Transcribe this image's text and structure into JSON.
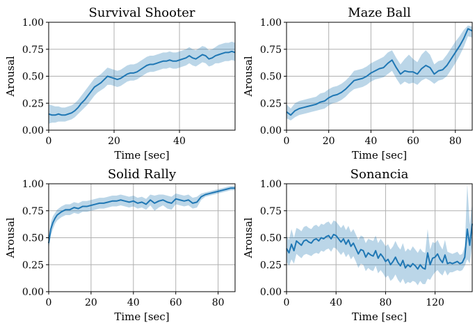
{
  "style": {
    "line_color": "#1f77b4",
    "band_color": "#1f77b4",
    "band_opacity": 0.3,
    "grid_color": "#b0b0b0"
  },
  "chart_data": [
    {
      "type": "line",
      "title": "Survival Shooter",
      "xlabel": "Time [sec]",
      "ylabel": "Arousal",
      "xlim": [
        0,
        57
      ],
      "ylim": [
        0,
        1
      ],
      "xticks": [
        0,
        20,
        40
      ],
      "yticks": [
        0,
        0.25,
        0.5,
        0.75,
        1.0
      ],
      "ytick_labels": [
        "0.00",
        "0.25",
        "0.50",
        "0.75",
        "1.00"
      ],
      "grid": true,
      "x": [
        0,
        1,
        2,
        3,
        4,
        5,
        6,
        7,
        8,
        9,
        10,
        11,
        12,
        13,
        14,
        15,
        16,
        17,
        18,
        19,
        20,
        21,
        22,
        23,
        24,
        25,
        26,
        27,
        28,
        29,
        30,
        31,
        32,
        33,
        34,
        35,
        36,
        37,
        38,
        39,
        40,
        41,
        42,
        43,
        44,
        45,
        46,
        47,
        48,
        49,
        50,
        51,
        52,
        53,
        54,
        55,
        56,
        57
      ],
      "mean": [
        0.15,
        0.14,
        0.14,
        0.15,
        0.14,
        0.14,
        0.15,
        0.16,
        0.18,
        0.21,
        0.25,
        0.28,
        0.32,
        0.36,
        0.4,
        0.42,
        0.44,
        0.47,
        0.5,
        0.49,
        0.48,
        0.47,
        0.48,
        0.5,
        0.52,
        0.53,
        0.53,
        0.54,
        0.56,
        0.58,
        0.6,
        0.61,
        0.61,
        0.62,
        0.63,
        0.64,
        0.64,
        0.65,
        0.64,
        0.64,
        0.65,
        0.66,
        0.67,
        0.69,
        0.67,
        0.66,
        0.68,
        0.7,
        0.69,
        0.66,
        0.67,
        0.69,
        0.7,
        0.71,
        0.72,
        0.72,
        0.73,
        0.72
      ],
      "lower": [
        0.06,
        0.07,
        0.07,
        0.08,
        0.08,
        0.08,
        0.09,
        0.1,
        0.12,
        0.15,
        0.18,
        0.21,
        0.24,
        0.28,
        0.32,
        0.35,
        0.37,
        0.39,
        0.42,
        0.42,
        0.41,
        0.4,
        0.41,
        0.43,
        0.45,
        0.46,
        0.46,
        0.47,
        0.49,
        0.51,
        0.53,
        0.54,
        0.54,
        0.55,
        0.56,
        0.57,
        0.57,
        0.58,
        0.57,
        0.57,
        0.58,
        0.59,
        0.6,
        0.62,
        0.6,
        0.59,
        0.61,
        0.63,
        0.62,
        0.59,
        0.6,
        0.62,
        0.62,
        0.63,
        0.64,
        0.64,
        0.65,
        0.64
      ],
      "upper": [
        0.24,
        0.23,
        0.22,
        0.22,
        0.21,
        0.21,
        0.22,
        0.23,
        0.25,
        0.28,
        0.32,
        0.36,
        0.4,
        0.44,
        0.48,
        0.5,
        0.52,
        0.55,
        0.58,
        0.57,
        0.56,
        0.55,
        0.56,
        0.58,
        0.6,
        0.61,
        0.61,
        0.62,
        0.64,
        0.66,
        0.68,
        0.69,
        0.69,
        0.7,
        0.71,
        0.72,
        0.72,
        0.73,
        0.72,
        0.72,
        0.73,
        0.74,
        0.75,
        0.77,
        0.75,
        0.74,
        0.76,
        0.78,
        0.77,
        0.74,
        0.75,
        0.77,
        0.79,
        0.8,
        0.81,
        0.81,
        0.82,
        0.81
      ]
    },
    {
      "type": "line",
      "title": "Maze Ball",
      "xlabel": "Time [sec]",
      "ylabel": "Arousal",
      "xlim": [
        0,
        88
      ],
      "ylim": [
        0,
        1
      ],
      "xticks": [
        0,
        20,
        40,
        60,
        80
      ],
      "yticks": [
        0,
        0.25,
        0.5,
        0.75,
        1.0
      ],
      "ytick_labels": [
        "0.00",
        "0.25",
        "0.50",
        "0.75",
        "1.00"
      ],
      "grid": true,
      "x": [
        0,
        2,
        4,
        6,
        8,
        10,
        12,
        14,
        16,
        18,
        20,
        22,
        24,
        26,
        28,
        30,
        32,
        34,
        36,
        38,
        40,
        42,
        44,
        46,
        48,
        50,
        52,
        54,
        56,
        58,
        60,
        62,
        64,
        66,
        68,
        70,
        72,
        74,
        76,
        78,
        80,
        82,
        84,
        86,
        88
      ],
      "mean": [
        0.17,
        0.14,
        0.18,
        0.2,
        0.21,
        0.22,
        0.23,
        0.24,
        0.26,
        0.27,
        0.3,
        0.32,
        0.33,
        0.35,
        0.38,
        0.42,
        0.46,
        0.47,
        0.48,
        0.5,
        0.53,
        0.55,
        0.57,
        0.58,
        0.62,
        0.65,
        0.58,
        0.52,
        0.55,
        0.54,
        0.54,
        0.52,
        0.57,
        0.6,
        0.58,
        0.52,
        0.55,
        0.56,
        0.6,
        0.66,
        0.72,
        0.78,
        0.85,
        0.94,
        0.92
      ],
      "lower": [
        0.11,
        0.09,
        0.12,
        0.14,
        0.15,
        0.16,
        0.17,
        0.18,
        0.19,
        0.2,
        0.23,
        0.25,
        0.26,
        0.28,
        0.31,
        0.35,
        0.38,
        0.39,
        0.4,
        0.42,
        0.45,
        0.47,
        0.48,
        0.49,
        0.52,
        0.55,
        0.48,
        0.42,
        0.45,
        0.43,
        0.44,
        0.42,
        0.46,
        0.48,
        0.46,
        0.43,
        0.46,
        0.47,
        0.5,
        0.56,
        0.62,
        0.69,
        0.77,
        0.87,
        0.86
      ],
      "upper": [
        0.24,
        0.2,
        0.25,
        0.27,
        0.28,
        0.29,
        0.3,
        0.31,
        0.34,
        0.35,
        0.38,
        0.4,
        0.41,
        0.43,
        0.46,
        0.5,
        0.55,
        0.56,
        0.57,
        0.59,
        0.62,
        0.64,
        0.66,
        0.68,
        0.72,
        0.74,
        0.67,
        0.61,
        0.66,
        0.7,
        0.66,
        0.63,
        0.7,
        0.74,
        0.7,
        0.61,
        0.64,
        0.65,
        0.7,
        0.76,
        0.82,
        0.87,
        0.93,
        0.97,
        0.96
      ]
    },
    {
      "type": "line",
      "title": "Solid Rally",
      "xlabel": "Time [sec]",
      "ylabel": "Arousal",
      "xlim": [
        0,
        88
      ],
      "ylim": [
        0,
        1
      ],
      "xticks": [
        0,
        20,
        40,
        60,
        80
      ],
      "yticks": [
        0,
        0.25,
        0.5,
        0.75,
        1.0
      ],
      "ytick_labels": [
        "0.00",
        "0.25",
        "0.50",
        "0.75",
        "1.00"
      ],
      "grid": true,
      "x": [
        0,
        1,
        2,
        3,
        4,
        6,
        8,
        10,
        12,
        14,
        16,
        18,
        20,
        22,
        24,
        26,
        28,
        30,
        32,
        34,
        36,
        38,
        40,
        42,
        44,
        46,
        48,
        50,
        52,
        54,
        56,
        58,
        60,
        62,
        64,
        66,
        68,
        70,
        72,
        74,
        76,
        78,
        80,
        82,
        84,
        86,
        88
      ],
      "mean": [
        0.45,
        0.58,
        0.64,
        0.68,
        0.71,
        0.74,
        0.76,
        0.76,
        0.78,
        0.77,
        0.79,
        0.79,
        0.8,
        0.81,
        0.82,
        0.82,
        0.83,
        0.84,
        0.84,
        0.85,
        0.84,
        0.83,
        0.84,
        0.82,
        0.83,
        0.81,
        0.85,
        0.82,
        0.84,
        0.85,
        0.83,
        0.82,
        0.86,
        0.85,
        0.84,
        0.85,
        0.82,
        0.83,
        0.88,
        0.9,
        0.91,
        0.92,
        0.93,
        0.94,
        0.95,
        0.96,
        0.96
      ],
      "lower": [
        0.4,
        0.52,
        0.58,
        0.63,
        0.66,
        0.69,
        0.71,
        0.71,
        0.73,
        0.72,
        0.74,
        0.74,
        0.75,
        0.76,
        0.77,
        0.77,
        0.78,
        0.79,
        0.79,
        0.8,
        0.79,
        0.78,
        0.79,
        0.77,
        0.78,
        0.76,
        0.8,
        0.75,
        0.78,
        0.8,
        0.77,
        0.76,
        0.81,
        0.8,
        0.79,
        0.8,
        0.77,
        0.78,
        0.85,
        0.88,
        0.89,
        0.9,
        0.91,
        0.92,
        0.93,
        0.94,
        0.94
      ],
      "upper": [
        0.5,
        0.64,
        0.7,
        0.73,
        0.76,
        0.79,
        0.81,
        0.81,
        0.83,
        0.82,
        0.84,
        0.84,
        0.85,
        0.86,
        0.87,
        0.87,
        0.88,
        0.89,
        0.89,
        0.9,
        0.89,
        0.88,
        0.89,
        0.87,
        0.88,
        0.86,
        0.9,
        0.89,
        0.9,
        0.9,
        0.89,
        0.88,
        0.91,
        0.9,
        0.89,
        0.9,
        0.87,
        0.88,
        0.91,
        0.92,
        0.93,
        0.94,
        0.95,
        0.96,
        0.97,
        0.98,
        0.98
      ]
    },
    {
      "type": "line",
      "title": "Sonancia",
      "xlabel": "Time [sec]",
      "ylabel": "Arousal",
      "xlim": [
        0,
        150
      ],
      "ylim": [
        0,
        1
      ],
      "xticks": [
        0,
        40,
        80,
        120
      ],
      "yticks": [
        0,
        0.25,
        0.5,
        0.75,
        1.0
      ],
      "ytick_labels": [
        "0.00",
        "0.25",
        "0.50",
        "0.75",
        "1.00"
      ],
      "grid": true,
      "x": [
        0,
        2,
        4,
        6,
        8,
        10,
        12,
        14,
        16,
        18,
        20,
        22,
        24,
        26,
        28,
        30,
        32,
        34,
        36,
        38,
        40,
        42,
        44,
        46,
        48,
        50,
        52,
        54,
        56,
        58,
        60,
        62,
        64,
        66,
        68,
        70,
        72,
        74,
        76,
        78,
        80,
        82,
        84,
        86,
        88,
        90,
        92,
        94,
        96,
        98,
        100,
        102,
        104,
        106,
        108,
        110,
        112,
        114,
        116,
        118,
        120,
        122,
        124,
        126,
        128,
        130,
        132,
        134,
        136,
        138,
        140,
        142,
        144,
        146,
        148,
        150
      ],
      "mean": [
        0.4,
        0.36,
        0.44,
        0.38,
        0.47,
        0.45,
        0.43,
        0.47,
        0.48,
        0.46,
        0.45,
        0.48,
        0.49,
        0.47,
        0.5,
        0.49,
        0.51,
        0.52,
        0.49,
        0.53,
        0.52,
        0.49,
        0.46,
        0.49,
        0.44,
        0.48,
        0.42,
        0.45,
        0.4,
        0.35,
        0.39,
        0.38,
        0.32,
        0.36,
        0.34,
        0.33,
        0.38,
        0.31,
        0.35,
        0.32,
        0.28,
        0.3,
        0.25,
        0.28,
        0.32,
        0.27,
        0.24,
        0.29,
        0.22,
        0.25,
        0.23,
        0.26,
        0.24,
        0.21,
        0.25,
        0.22,
        0.21,
        0.36,
        0.25,
        0.31,
        0.32,
        0.35,
        0.3,
        0.27,
        0.34,
        0.26,
        0.27,
        0.26,
        0.27,
        0.28,
        0.26,
        0.27,
        0.32,
        0.58,
        0.43,
        0.63
      ],
      "lower": [
        0.28,
        0.24,
        0.3,
        0.26,
        0.35,
        0.33,
        0.31,
        0.34,
        0.35,
        0.34,
        0.33,
        0.35,
        0.36,
        0.35,
        0.38,
        0.37,
        0.39,
        0.4,
        0.37,
        0.41,
        0.4,
        0.37,
        0.34,
        0.37,
        0.32,
        0.35,
        0.3,
        0.33,
        0.28,
        0.22,
        0.26,
        0.25,
        0.19,
        0.22,
        0.2,
        0.19,
        0.24,
        0.17,
        0.2,
        0.17,
        0.13,
        0.15,
        0.1,
        0.12,
        0.16,
        0.11,
        0.08,
        0.12,
        0.07,
        0.09,
        0.08,
        0.1,
        0.09,
        0.06,
        0.1,
        0.07,
        0.07,
        0.12,
        0.11,
        0.15,
        0.18,
        0.2,
        0.17,
        0.15,
        0.2,
        0.15,
        0.18,
        0.18,
        0.19,
        0.2,
        0.19,
        0.2,
        0.24,
        0.3,
        0.26,
        0.44
      ],
      "upper": [
        0.52,
        0.48,
        0.58,
        0.5,
        0.59,
        0.58,
        0.56,
        0.6,
        0.61,
        0.59,
        0.58,
        0.61,
        0.62,
        0.6,
        0.63,
        0.62,
        0.64,
        0.65,
        0.62,
        0.66,
        0.65,
        0.62,
        0.59,
        0.62,
        0.57,
        0.61,
        0.55,
        0.58,
        0.53,
        0.48,
        0.52,
        0.51,
        0.45,
        0.49,
        0.48,
        0.47,
        0.52,
        0.45,
        0.49,
        0.46,
        0.42,
        0.44,
        0.39,
        0.42,
        0.47,
        0.42,
        0.39,
        0.45,
        0.37,
        0.4,
        0.38,
        0.42,
        0.39,
        0.36,
        0.4,
        0.37,
        0.36,
        0.58,
        0.39,
        0.46,
        0.45,
        0.48,
        0.43,
        0.39,
        0.48,
        0.37,
        0.36,
        0.35,
        0.36,
        0.37,
        0.34,
        0.35,
        0.42,
        1.0,
        0.62,
        0.82
      ]
    }
  ]
}
